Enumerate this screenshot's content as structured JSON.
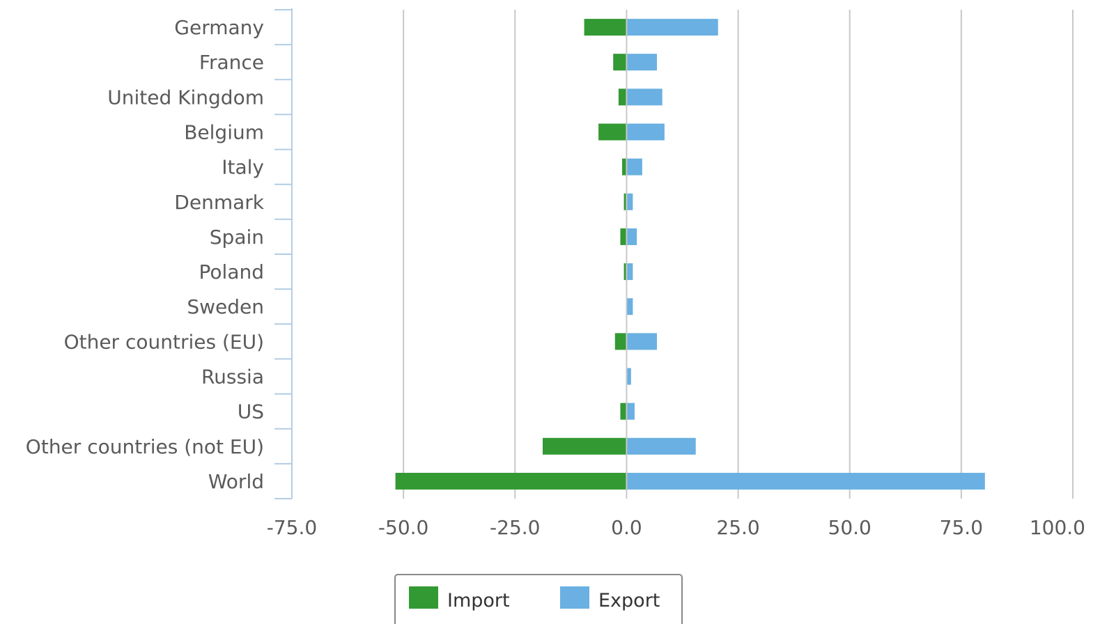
{
  "chart_data": {
    "type": "bar",
    "orientation": "horizontal",
    "categories": [
      "Germany",
      "France",
      "United Kingdom",
      "Belgium",
      "Italy",
      "Denmark",
      "Spain",
      "Poland",
      "Sweden",
      "Other countries (EU)",
      "Russia",
      "US",
      "Other countries (not EU)",
      "World"
    ],
    "series": [
      {
        "name": "Import",
        "color": "#339933",
        "values": [
          -9.5,
          -3.0,
          -1.8,
          -6.3,
          -1.0,
          -0.6,
          -1.4,
          -0.6,
          0.0,
          -2.6,
          0.0,
          -1.4,
          -18.8,
          -51.8
        ]
      },
      {
        "name": "Export",
        "color": "#6ab0e2",
        "values": [
          20.5,
          6.8,
          8.0,
          8.5,
          3.5,
          1.4,
          2.3,
          1.4,
          1.4,
          6.8,
          1.0,
          1.8,
          15.5,
          80.3
        ]
      }
    ],
    "xlim": [
      -75,
      100
    ],
    "xticks": [
      -75,
      -50,
      -25,
      0,
      25,
      50,
      75,
      100
    ],
    "tick_labels": [
      "-75.0",
      "-50.0",
      "-25.0",
      "0.0",
      "25.0",
      "50.0",
      "75.0",
      "100.0"
    ],
    "title": "",
    "xlabel": "",
    "ylabel": "",
    "grid": "vertical",
    "legend_position": "bottom-center",
    "stacked": true
  }
}
